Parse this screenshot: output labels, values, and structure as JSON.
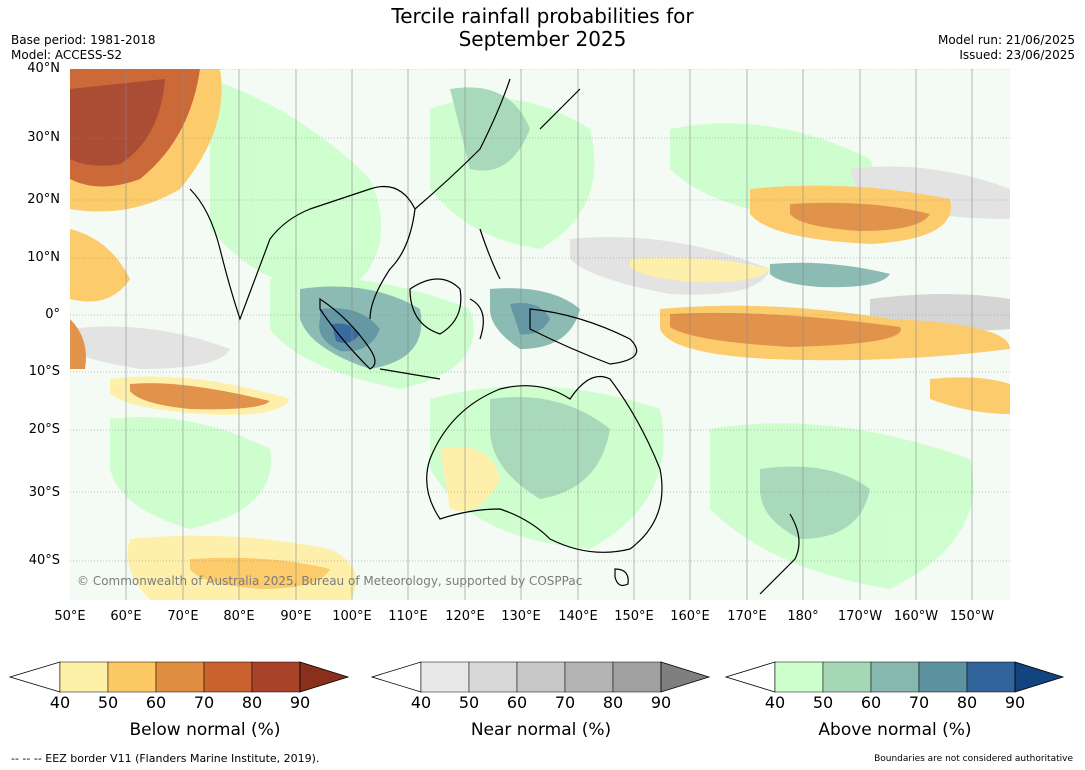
{
  "title_line1": "Tercile rainfall probabilities for",
  "title_line2": "September 2025",
  "base_period": "Base period: 1981-2018",
  "model": "Model: ACCESS-S2",
  "model_run": "Model run: 21/06/2025",
  "issued": "Issued: 23/06/2025",
  "lat_labels": [
    "40°N",
    "30°N",
    "20°N",
    "10°N",
    "0°",
    "10°S",
    "20°S",
    "30°S",
    "40°S"
  ],
  "lon_labels": [
    "50°E",
    "60°E",
    "70°E",
    "80°E",
    "90°E",
    "100°E",
    "110°E",
    "120°E",
    "130°E",
    "140°E",
    "150°E",
    "160°E",
    "170°E",
    "180°",
    "170°W",
    "160°W",
    "150°W"
  ],
  "copyright": "© Commonwealth of Australia 2025, Bureau of Meteorology, supported by COSPPac",
  "colorbars": [
    {
      "label": "Below normal (%)",
      "ticks": [
        "40",
        "50",
        "60",
        "70",
        "80",
        "90"
      ],
      "colors": [
        "#fff0a8",
        "#fdc964",
        "#e08e42",
        "#c9622e",
        "#a8432a"
      ],
      "extend": "#8a2f1c"
    },
    {
      "label": "Near normal (%)",
      "ticks": [
        "40",
        "50",
        "60",
        "70",
        "80",
        "90"
      ],
      "colors": [
        "#e8e8e8",
        "#d8d8d8",
        "#c8c8c8",
        "#b4b4b4",
        "#a0a0a0"
      ],
      "extend": "#7f7f7f"
    },
    {
      "label": "Above normal (%)",
      "ticks": [
        "40",
        "50",
        "60",
        "70",
        "80",
        "90"
      ],
      "colors": [
        "#ccffcc",
        "#a6d8b8",
        "#86b8b0",
        "#5d93a0",
        "#30649a"
      ],
      "extend": "#12457f"
    }
  ],
  "footer_left": "--  --  -- EEZ border V11 (Flanders Marine Institute, 2019).",
  "footer_right": "Boundaries are not considered authoritative"
}
